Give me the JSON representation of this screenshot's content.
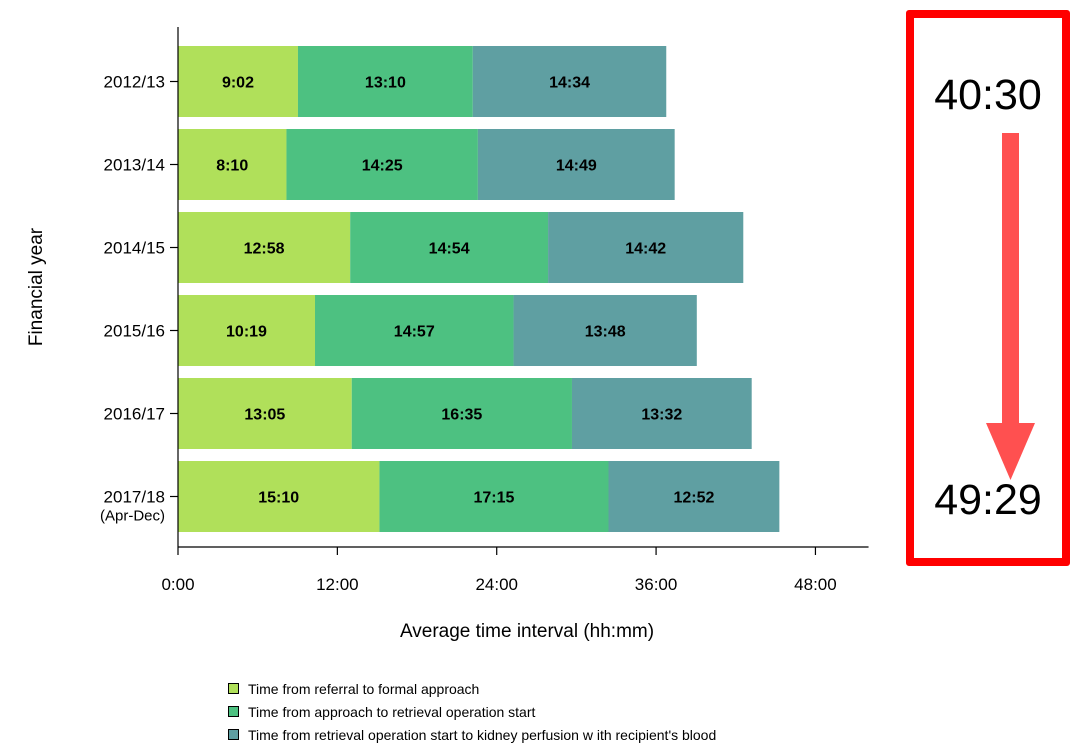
{
  "chart_data": {
    "type": "bar",
    "orientation": "horizontal",
    "stacked": true,
    "title": "",
    "xlabel": "Average time interval (hh:mm)",
    "ylabel": "Financial year",
    "xlim_hours": [
      0,
      52
    ],
    "x_ticks": [
      {
        "hours": 0,
        "label": "0:00"
      },
      {
        "hours": 12,
        "label": "12:00"
      },
      {
        "hours": 24,
        "label": "24:00"
      },
      {
        "hours": 36,
        "label": "36:00"
      },
      {
        "hours": 48,
        "label": "48:00"
      }
    ],
    "categories": [
      {
        "label": "2012/13",
        "sublabel": ""
      },
      {
        "label": "2013/14",
        "sublabel": ""
      },
      {
        "label": "2014/15",
        "sublabel": ""
      },
      {
        "label": "2015/16",
        "sublabel": ""
      },
      {
        "label": "2016/17",
        "sublabel": ""
      },
      {
        "label": "2017/18",
        "sublabel": "(Apr-Dec)"
      }
    ],
    "series": [
      {
        "name": "Time from referral to formal approach",
        "color": "#b0e05a",
        "values": [
          "9:02",
          "8:10",
          "12:58",
          "10:19",
          "13:05",
          "15:10"
        ]
      },
      {
        "name": "Time from approach to retrieval operation start",
        "color": "#4dc181",
        "values": [
          "13:10",
          "14:25",
          "14:54",
          "14:57",
          "16:35",
          "17:15"
        ]
      },
      {
        "name": "Time from retrieval operation start to kidney perfusion w ith recipient's blood",
        "color": "#5f9fa2",
        "values": [
          "14:34",
          "14:49",
          "14:42",
          "13:48",
          "13:32",
          "12:52"
        ]
      }
    ],
    "grid": false,
    "legend_position": "bottom"
  },
  "summary": {
    "top": "40:30",
    "bottom": "49:29",
    "border_color": "#ff0000",
    "arrow_color": "#ff5050"
  }
}
